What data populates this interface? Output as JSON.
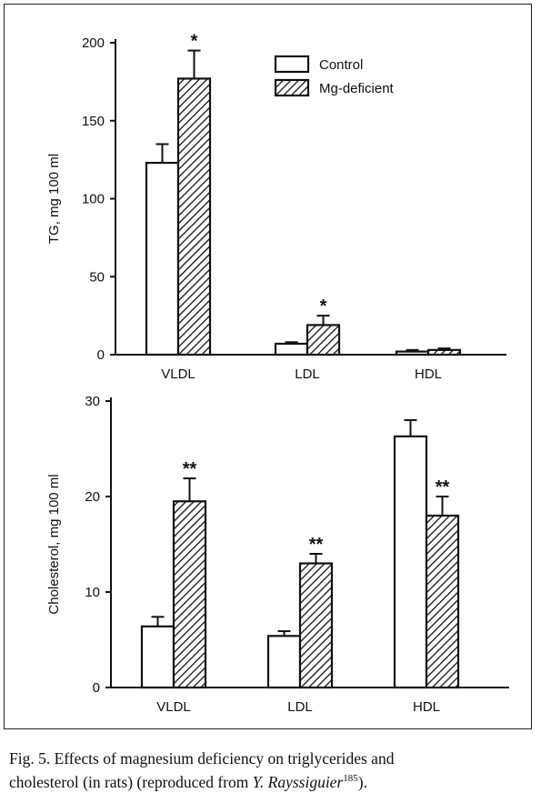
{
  "chart_data": [
    {
      "type": "bar",
      "categories": [
        "VLDL",
        "LDL",
        "HDL"
      ],
      "ylabel": "TG, mg 100 ml",
      "ylim": [
        0,
        200
      ],
      "yticks": [
        0,
        50,
        100,
        150,
        200
      ],
      "legend": {
        "position": "top-right",
        "entries": [
          "Control",
          "Mg-deficient"
        ]
      },
      "series": [
        {
          "name": "Control",
          "values": [
            123,
            7,
            2
          ],
          "errors": [
            12,
            1,
            1
          ],
          "pattern": "white"
        },
        {
          "name": "Mg-deficient",
          "values": [
            177,
            19,
            3
          ],
          "errors": [
            18,
            6,
            1
          ],
          "pattern": "hatched"
        }
      ],
      "annotations": [
        {
          "category": "VLDL",
          "series": "Mg-deficient",
          "text": "*"
        },
        {
          "category": "LDL",
          "series": "Mg-deficient",
          "text": "*"
        }
      ]
    },
    {
      "type": "bar",
      "categories": [
        "VLDL",
        "LDL",
        "HDL"
      ],
      "ylabel": "Cholesterol, mg 100 ml",
      "ylim": [
        0,
        30
      ],
      "yticks": [
        0,
        10,
        20,
        30
      ],
      "series": [
        {
          "name": "Control",
          "values": [
            6.4,
            5.4,
            26.3
          ],
          "errors": [
            1.0,
            0.5,
            1.7
          ],
          "pattern": "white"
        },
        {
          "name": "Mg-deficient",
          "values": [
            19.5,
            13.0,
            18.0
          ],
          "errors": [
            2.4,
            1.0,
            2.0
          ],
          "pattern": "hatched"
        }
      ],
      "annotations": [
        {
          "category": "VLDL",
          "series": "Mg-deficient",
          "text": "**"
        },
        {
          "category": "LDL",
          "series": "Mg-deficient",
          "text": "**"
        },
        {
          "category": "HDL",
          "series": "Mg-deficient",
          "text": "**"
        }
      ]
    }
  ],
  "caption": {
    "lead": "Fig. 5.  Effects of magnesium deficiency on triglycerides and",
    "line2_start": "cholesterol (in rats) (reproduced from ",
    "author": "Y. Rayssiguier",
    "ref": "185",
    "end": ")."
  }
}
